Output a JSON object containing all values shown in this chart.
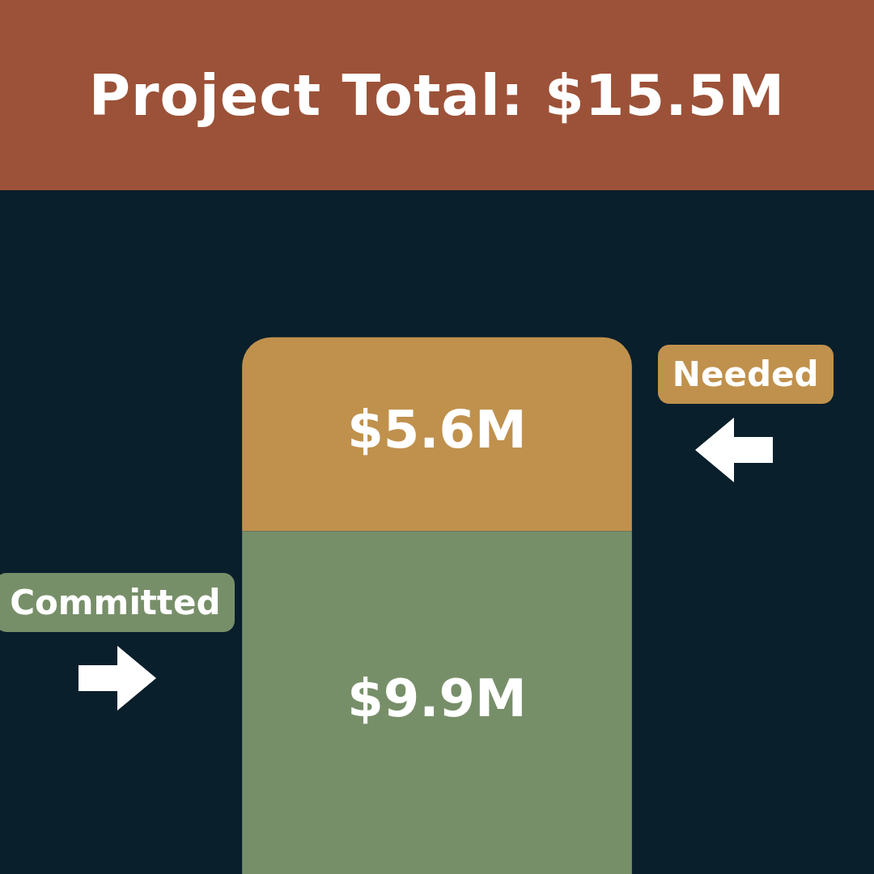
{
  "chart_data": {
    "type": "bar",
    "title": "Project Total: $15.5M",
    "categories": [
      null
    ],
    "stacked": true,
    "series": [
      {
        "name": "Committed",
        "color": "#778f69",
        "values": [
          9.9
        ],
        "value_labels": [
          "$9.9M"
        ]
      },
      {
        "name": "Needed",
        "color": "#c0914d",
        "values": [
          5.6
        ],
        "value_labels": [
          "$5.6M"
        ]
      }
    ]
  }
}
